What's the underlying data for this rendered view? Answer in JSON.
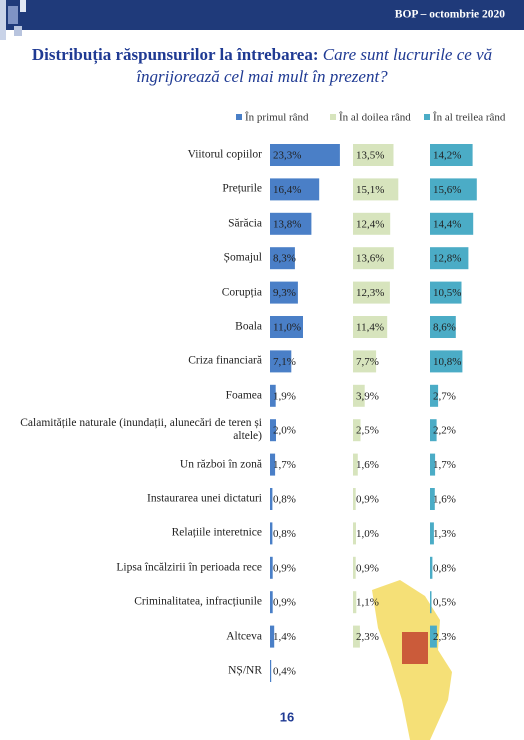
{
  "header": "BOP – octombrie 2020",
  "title": {
    "lead": "Distribuția răspunsurilor la întrebarea:",
    "question": "Care sunt lucrurile ce vă îngrijorează cel mai mult în prezent?"
  },
  "page_number": "16",
  "chart_data": {
    "type": "bar",
    "orientation": "horizontal",
    "categories": [
      "Viitorul copiilor",
      "Prețurile",
      "Sărăcia",
      "Șomajul",
      "Corupția",
      "Boala",
      "Criza financiară",
      "Foamea",
      "Calamitățile naturale (inundații, alunecări de teren și altele)",
      "Un război în zonă",
      "Instaurarea unei dictaturi",
      "Relațiile interetnice",
      "Lipsa încălzirii în perioada rece",
      "Criminalitatea, infracțiunile",
      "Altceva",
      "NȘ/NR"
    ],
    "series": [
      {
        "name": "În primul rând",
        "color": "#4a7fc7",
        "values": [
          23.3,
          16.4,
          13.8,
          8.3,
          9.3,
          11.0,
          7.1,
          1.9,
          2.0,
          1.7,
          0.8,
          0.8,
          0.9,
          0.9,
          1.4,
          0.4
        ],
        "value_labels": [
          "23,3%",
          "16,4%",
          "13,8%",
          "8,3%",
          "9,3%",
          "11,0%",
          "7,1%",
          "1,9%",
          "2,0%",
          "1,7%",
          "0,8%",
          "0,8%",
          "0,9%",
          "0,9%",
          "1,4%",
          "0,4%"
        ]
      },
      {
        "name": "În al doilea rând",
        "color": "#d7e4bd",
        "values": [
          13.5,
          15.1,
          12.4,
          13.6,
          12.3,
          11.4,
          7.7,
          3.9,
          2.5,
          1.6,
          0.9,
          1.0,
          0.9,
          1.1,
          2.3,
          null
        ],
        "value_labels": [
          "13,5%",
          "15,1%",
          "12,4%",
          "13,6%",
          "12,3%",
          "11,4%",
          "7,7%",
          "3,9%",
          "2,5%",
          "1,6%",
          "0,9%",
          "1,0%",
          "0,9%",
          "1,1%",
          "2,3%",
          null
        ]
      },
      {
        "name": "În al treilea rând",
        "color": "#4bacc6",
        "values": [
          14.2,
          15.6,
          14.4,
          12.8,
          10.5,
          8.6,
          10.8,
          2.7,
          2.2,
          1.7,
          1.6,
          1.3,
          0.8,
          0.5,
          2.3,
          null
        ],
        "value_labels": [
          "14,2%",
          "15,6%",
          "14,4%",
          "12,8%",
          "10,5%",
          "8,6%",
          "10,8%",
          "2,7%",
          "2,2%",
          "1,7%",
          "1,6%",
          "1,3%",
          "0,8%",
          "0,5%",
          "2,3%",
          null
        ]
      }
    ]
  }
}
